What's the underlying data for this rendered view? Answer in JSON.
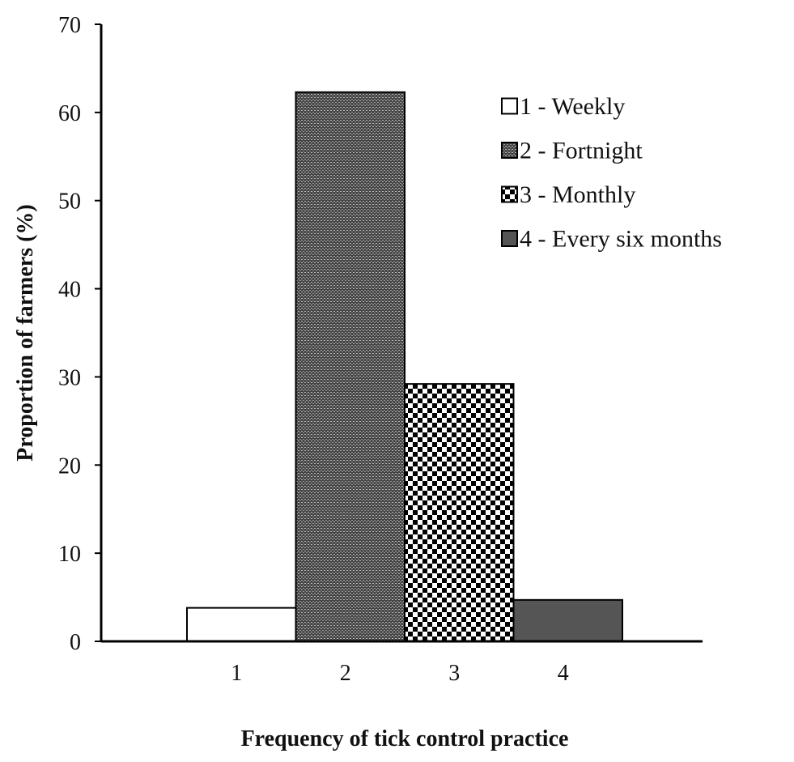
{
  "chart_data": {
    "type": "bar",
    "title": "",
    "xlabel": "Frequency of tick control practice",
    "ylabel": "Proportion of farmers (%)",
    "ylim": [
      0,
      70
    ],
    "yticks": [
      0,
      10,
      20,
      30,
      40,
      50,
      60,
      70
    ],
    "categories": [
      "1",
      "2",
      "3",
      "4"
    ],
    "values": [
      3.8,
      62.3,
      29.2,
      4.7
    ],
    "grid": false,
    "legend_position": "top-right",
    "legend": [
      {
        "label": "1 - Weekly",
        "pattern": "blank"
      },
      {
        "label": "2 - Fortnight",
        "pattern": "fine-dots"
      },
      {
        "label": "3 - Monthly",
        "pattern": "checker"
      },
      {
        "label": "4 - Every six months",
        "pattern": "solid-gray"
      }
    ],
    "colors": {
      "axis": "#000000",
      "bar_border": "#000000",
      "fortnight_base": "#444444",
      "fortnight_dot": "#bbbbbb",
      "monthly_dark": "#000000",
      "monthly_light": "#ffffff",
      "solid_gray": "#555555",
      "blank": "#ffffff"
    }
  }
}
